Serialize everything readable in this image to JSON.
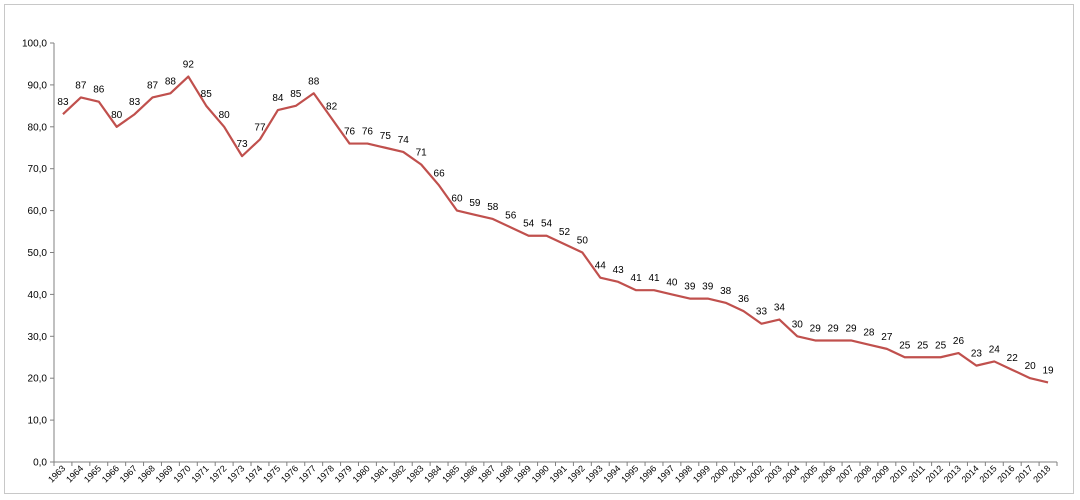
{
  "chart_data": {
    "type": "line",
    "ylim": [
      0,
      100
    ],
    "y_ticks": [
      "0,0",
      "10,0",
      "20,0",
      "30,0",
      "40,0",
      "50,0",
      "60,0",
      "70,0",
      "80,0",
      "90,0",
      "100,0"
    ],
    "grid": false,
    "legend": "none",
    "line_color": "#c0504d",
    "x": [
      "1963",
      "1964",
      "1965",
      "1966",
      "1967",
      "1968",
      "1969",
      "1970",
      "1971",
      "1972",
      "1973",
      "1974",
      "1975",
      "1976",
      "1977",
      "1978",
      "1979",
      "1980",
      "1981",
      "1982",
      "1983",
      "1984",
      "1985",
      "1986",
      "1987",
      "1988",
      "1989",
      "1990",
      "1991",
      "1992",
      "1993",
      "1994",
      "1995",
      "1996",
      "1997",
      "1998",
      "1999",
      "2000",
      "2001",
      "2002",
      "2003",
      "2004",
      "2005",
      "2006",
      "2007",
      "2008",
      "2009",
      "2010",
      "2011",
      "2012",
      "2013",
      "2014",
      "2015",
      "2016",
      "2017",
      "2018"
    ],
    "series": [
      {
        "values": [
          83,
          87,
          86,
          80,
          83,
          87,
          88,
          92,
          85,
          80,
          73,
          77,
          84,
          85,
          88,
          82,
          76,
          76,
          75,
          74,
          71,
          66,
          60,
          59,
          58,
          56,
          54,
          54,
          52,
          50,
          44,
          43,
          41,
          41,
          40,
          39,
          39,
          38,
          36,
          33,
          34,
          30,
          29,
          29,
          29,
          28,
          27,
          25,
          25,
          25,
          26,
          23,
          24,
          22,
          20,
          19
        ]
      }
    ]
  }
}
